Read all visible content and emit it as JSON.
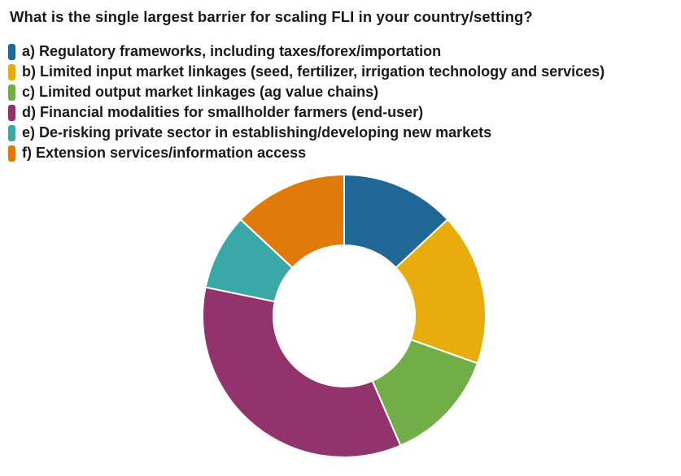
{
  "chart_data": {
    "type": "pie",
    "donut": true,
    "title": "What is the single largest barrier for scaling FLI in your country/setting?",
    "legend_position": "top-left",
    "categories": [
      "a) Regulatory frameworks, including taxes/forex/importation",
      "b) Limited input market linkages (seed, fertilizer, irrigation technology and services)",
      "c) Limited output market linkages (ag value chains)",
      "d) Financial modalities for smallholder farmers (end-user)",
      "e) De-risking private sector in establishing/developing new markets",
      "f) Extension services/information access"
    ],
    "values": [
      3,
      4,
      3,
      8,
      2,
      3
    ],
    "colors": [
      "#1f6896",
      "#e8ad0d",
      "#72ae48",
      "#93336e",
      "#3aa8a6",
      "#e07b0b"
    ]
  }
}
